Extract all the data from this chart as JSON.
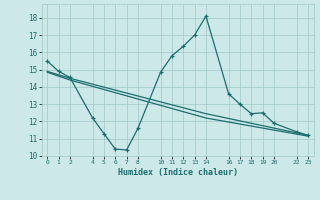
{
  "xlabel": "Humidex (Indice chaleur)",
  "bg_color": "#cde8e8",
  "grid_color": "#a0c8c8",
  "line_color": "#1a6e6e",
  "xlim": [
    -0.5,
    23.5
  ],
  "ylim": [
    10,
    18.8
  ],
  "yticks": [
    10,
    11,
    12,
    13,
    14,
    15,
    16,
    17,
    18
  ],
  "xticks": [
    0,
    1,
    2,
    4,
    5,
    6,
    7,
    8,
    10,
    11,
    12,
    13,
    14,
    16,
    17,
    18,
    19,
    20,
    22,
    23
  ],
  "line1_x": [
    0,
    1,
    2,
    4,
    5,
    6,
    7,
    8,
    10,
    11,
    12,
    13,
    14,
    16,
    17,
    18,
    19,
    20,
    22,
    23
  ],
  "line1_y": [
    15.5,
    14.9,
    14.55,
    12.2,
    11.3,
    10.4,
    10.35,
    11.6,
    14.85,
    15.8,
    16.35,
    17.0,
    18.1,
    13.6,
    13.0,
    12.45,
    12.5,
    11.9,
    11.4,
    11.2
  ],
  "line2_x": [
    0,
    2,
    14,
    23
  ],
  "line2_y": [
    14.9,
    14.5,
    12.45,
    11.2
  ],
  "line3_x": [
    0,
    2,
    14,
    23
  ],
  "line3_y": [
    14.85,
    14.4,
    12.2,
    11.15
  ]
}
